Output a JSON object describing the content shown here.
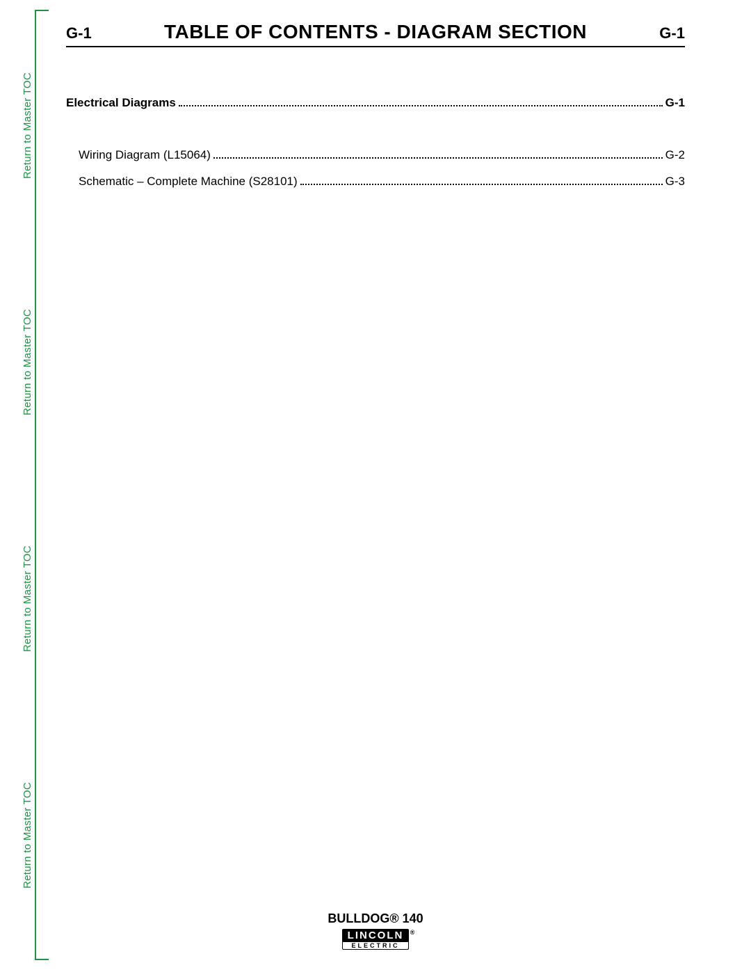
{
  "sidebar": {
    "link_text": "Return to Master TOC",
    "color": "#1a9641"
  },
  "header": {
    "page_left": "G-1",
    "title": "TABLE OF CONTENTS - DIAGRAM SECTION",
    "page_right": "G-1"
  },
  "toc": {
    "section": {
      "label": "Electrical Diagrams",
      "page": "G-1"
    },
    "entries": [
      {
        "label": "Wiring Diagram (L15064)",
        "page": "G-2"
      },
      {
        "label": "Schematic – Complete Machine (S28101)",
        "page": "G-3"
      }
    ]
  },
  "footer": {
    "model": "BULLDOG® 140",
    "logo_top": "LINCOLN",
    "logo_reg": "®",
    "logo_bottom": "ELECTRIC"
  }
}
